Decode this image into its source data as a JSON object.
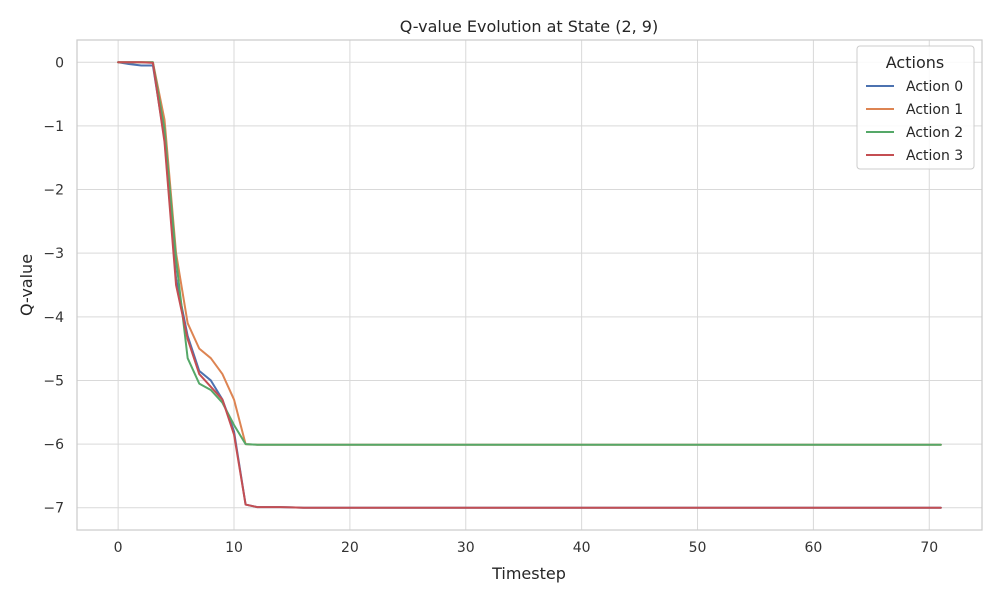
{
  "chart_data": {
    "type": "line",
    "title": "Q-value Evolution at State (2, 9)",
    "xlabel": "Timestep",
    "ylabel": "Q-value",
    "xlim": [
      -3.55,
      74.55
    ],
    "ylim": [
      -7.35,
      0.35
    ],
    "xticks": [
      0,
      10,
      20,
      30,
      40,
      50,
      60,
      70
    ],
    "yticks": [
      0,
      -1,
      -2,
      -3,
      -4,
      -5,
      -6,
      -7
    ],
    "ytick_labels": [
      "0",
      "−1",
      "−2",
      "−3",
      "−4",
      "−5",
      "−6",
      "−7"
    ],
    "grid": true,
    "legend": {
      "title": "Actions",
      "position": "top-right"
    },
    "series": [
      {
        "name": "Action 0",
        "color": "#4c72b0",
        "x": [
          0,
          1,
          2,
          3,
          4,
          5,
          6,
          7,
          8,
          9,
          10,
          11,
          12,
          13,
          14,
          15,
          16,
          18,
          20,
          25,
          30,
          40,
          50,
          60,
          71
        ],
        "y": [
          0,
          -0.03,
          -0.05,
          -0.05,
          -1.2,
          -3.4,
          -4.3,
          -4.85,
          -5.0,
          -5.3,
          -5.8,
          -6.95,
          -6.99,
          -6.99,
          -6.99,
          -6.995,
          -7.0,
          -7.0,
          -7.0,
          -7.0,
          -7.0,
          -7.0,
          -7.0,
          -7.0,
          -7.0
        ]
      },
      {
        "name": "Action 1",
        "color": "#dd8452",
        "x": [
          0,
          1,
          2,
          3,
          4,
          5,
          6,
          7,
          8,
          9,
          10,
          11,
          12,
          13,
          14,
          15,
          20,
          30,
          40,
          50,
          60,
          71
        ],
        "y": [
          0,
          0,
          0,
          0,
          -0.9,
          -3.0,
          -4.1,
          -4.5,
          -4.65,
          -4.9,
          -5.3,
          -6.0,
          -6.01,
          -6.01,
          -6.01,
          -6.01,
          -6.01,
          -6.01,
          -6.01,
          -6.01,
          -6.01,
          -6.01
        ]
      },
      {
        "name": "Action 2",
        "color": "#55a868",
        "x": [
          0,
          1,
          2,
          3,
          4,
          5,
          6,
          7,
          8,
          9,
          10,
          11,
          12,
          13,
          14,
          15,
          20,
          30,
          40,
          50,
          60,
          71
        ],
        "y": [
          0,
          0,
          0,
          0,
          -1.05,
          -3.1,
          -4.65,
          -5.05,
          -5.15,
          -5.35,
          -5.7,
          -6.0,
          -6.01,
          -6.01,
          -6.01,
          -6.01,
          -6.01,
          -6.01,
          -6.01,
          -6.01,
          -6.01,
          -6.01
        ]
      },
      {
        "name": "Action 3",
        "color": "#c44e52",
        "x": [
          0,
          1,
          2,
          3,
          4,
          5,
          6,
          7,
          8,
          9,
          10,
          11,
          12,
          13,
          14,
          15,
          16,
          18,
          20,
          25,
          30,
          40,
          50,
          60,
          71
        ],
        "y": [
          0,
          0,
          0,
          -0.01,
          -1.25,
          -3.5,
          -4.35,
          -4.9,
          -5.1,
          -5.3,
          -5.85,
          -6.95,
          -6.99,
          -6.99,
          -6.99,
          -6.995,
          -7.0,
          -7.0,
          -7.0,
          -7.0,
          -7.0,
          -7.0,
          -7.0,
          -7.0,
          -7.0
        ]
      }
    ]
  }
}
